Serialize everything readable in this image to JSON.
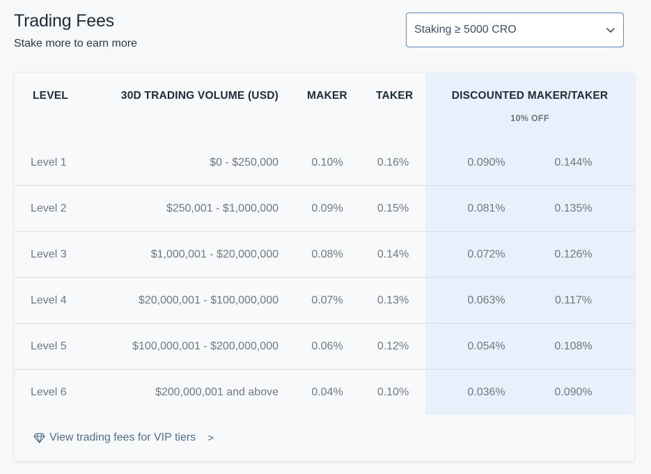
{
  "header": {
    "title": "Trading Fees",
    "subtitle": "Stake more to earn more"
  },
  "staking_select": {
    "value": "Staking ≥ 5000 CRO",
    "icon": "chevron-down-icon"
  },
  "table": {
    "columns": {
      "level": "LEVEL",
      "volume": "30D TRADING VOLUME (USD)",
      "maker": "MAKER",
      "taker": "TAKER",
      "discounted": "DISCOUNTED MAKER/TAKER",
      "discount_note": "10% OFF"
    },
    "rows": [
      {
        "level": "Level 1",
        "volume": "$0 - $250,000",
        "maker": "0.10%",
        "taker": "0.16%",
        "d_maker": "0.090%",
        "d_taker": "0.144%"
      },
      {
        "level": "Level 2",
        "volume": "$250,001 - $1,000,000",
        "maker": "0.09%",
        "taker": "0.15%",
        "d_maker": "0.081%",
        "d_taker": "0.135%"
      },
      {
        "level": "Level 3",
        "volume": "$1,000,001 - $20,000,000",
        "maker": "0.08%",
        "taker": "0.14%",
        "d_maker": "0.072%",
        "d_taker": "0.126%"
      },
      {
        "level": "Level 4",
        "volume": "$20,000,001 - $100,000,000",
        "maker": "0.07%",
        "taker": "0.13%",
        "d_maker": "0.063%",
        "d_taker": "0.117%"
      },
      {
        "level": "Level 5",
        "volume": "$100,000,001 - $200,000,000",
        "maker": "0.06%",
        "taker": "0.12%",
        "d_maker": "0.054%",
        "d_taker": "0.108%"
      },
      {
        "level": "Level 6",
        "volume": "$200,000,001 and above",
        "maker": "0.04%",
        "taker": "0.10%",
        "d_maker": "0.036%",
        "d_taker": "0.090%"
      }
    ]
  },
  "footer": {
    "vip_link_label": "View trading fees for VIP tiers",
    "vip_link_arrow": ">",
    "icon": "diamond-icon"
  },
  "colors": {
    "discount_column_bg": "#e7f0fb",
    "select_border": "#5b86c1",
    "link": "#4d6c8f"
  }
}
